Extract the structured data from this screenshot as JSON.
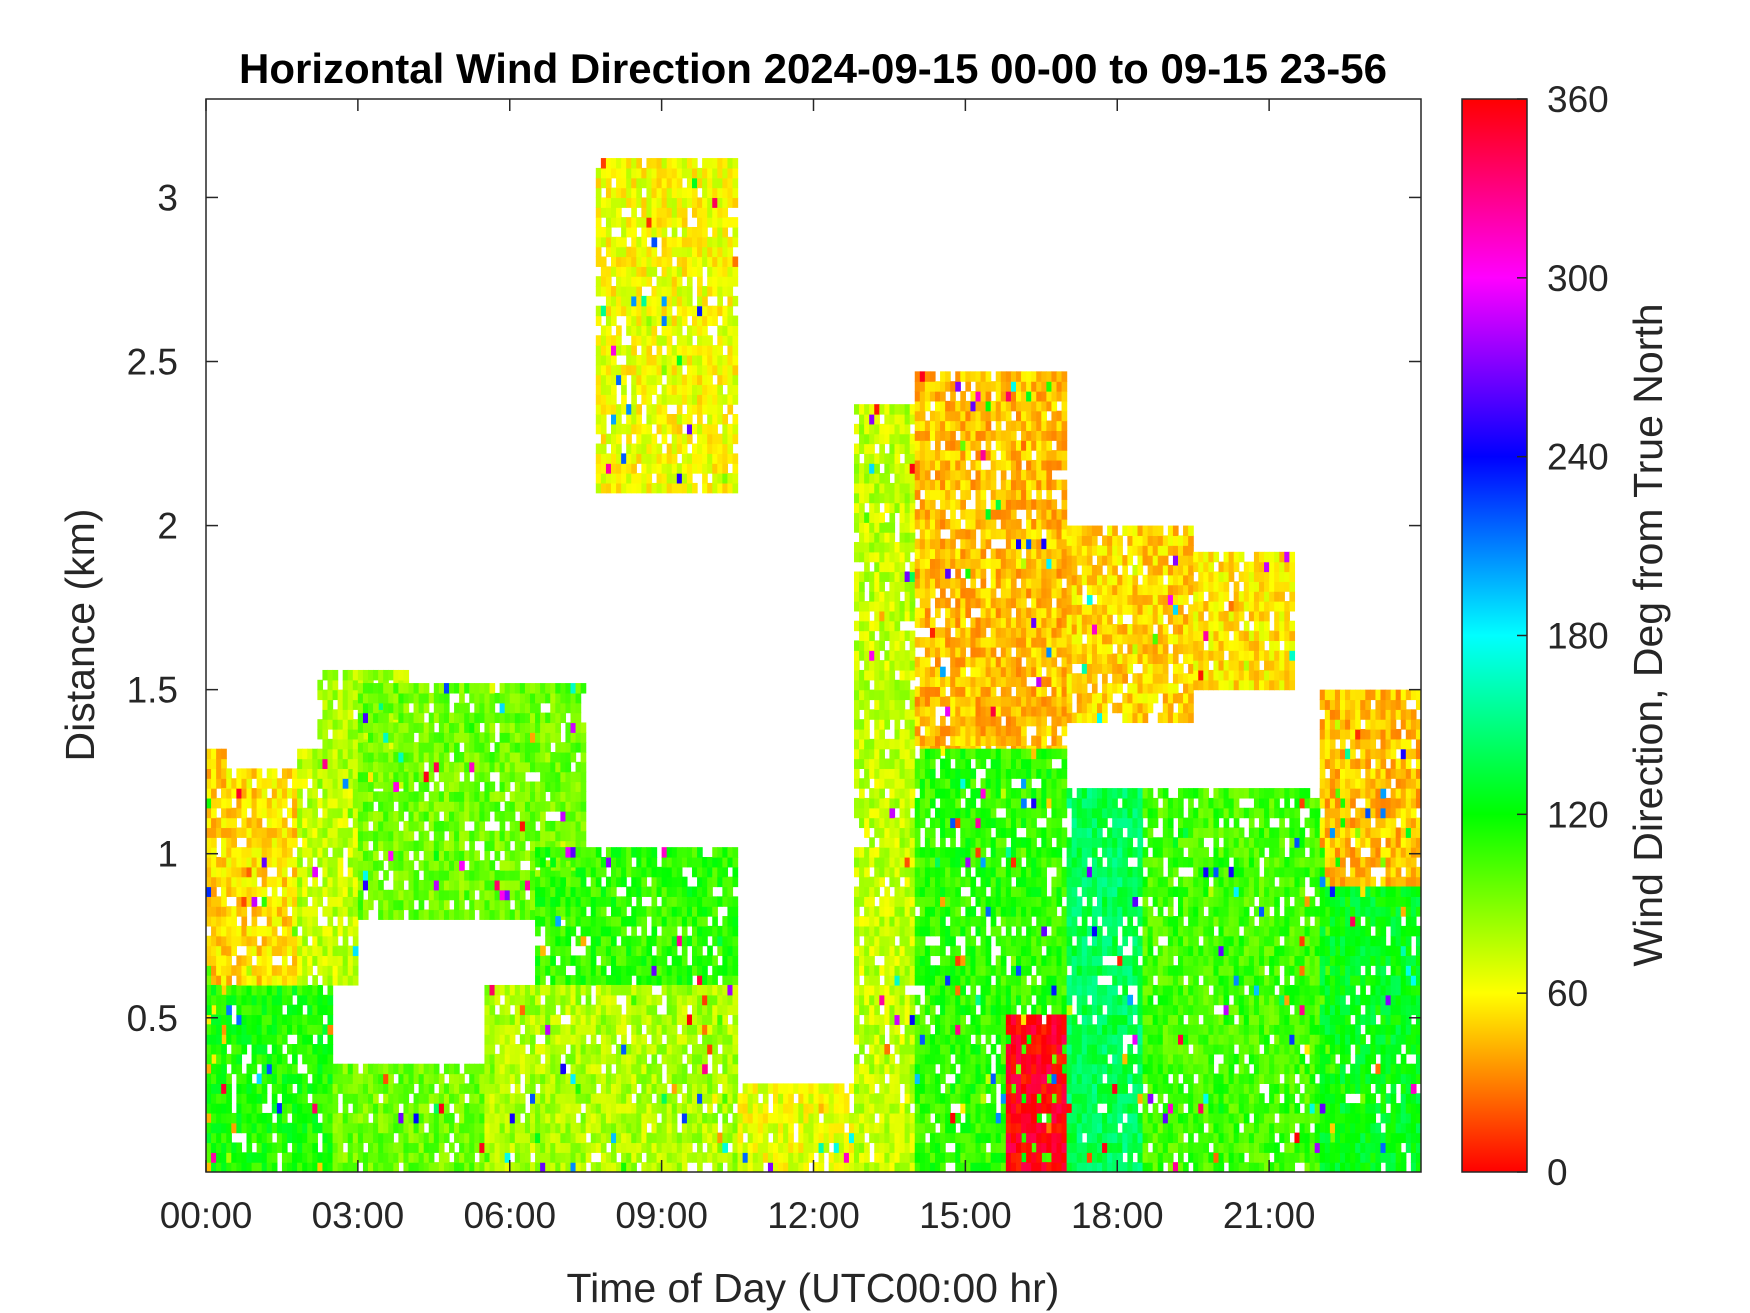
{
  "chart_data": {
    "type": "heatmap",
    "title": "Horizontal Wind Direction 2024-09-15 00-00 to 09-15 23-56",
    "xlabel": "Time of Day (UTC00:00 hr)",
    "ylabel": "Distance (km)",
    "colorbar_label": "Wind Direction, Deg from True North",
    "x_ticks": [
      "00:00",
      "03:00",
      "06:00",
      "09:00",
      "12:00",
      "15:00",
      "18:00",
      "21:00"
    ],
    "x_tick_hours": [
      0,
      3,
      6,
      9,
      12,
      15,
      18,
      21
    ],
    "xlim_hours": [
      0,
      24
    ],
    "y_ticks": [
      "0.5",
      "1",
      "1.5",
      "2",
      "2.5",
      "3"
    ],
    "y_tick_values": [
      0.5,
      1,
      1.5,
      2,
      2.5,
      3
    ],
    "ylim": [
      0.03,
      3.3
    ],
    "colorbar_ticks": [
      "0",
      "60",
      "120",
      "180",
      "240",
      "300",
      "360"
    ],
    "colorbar_values": [
      0,
      60,
      120,
      180,
      240,
      300,
      360
    ],
    "clim": [
      0,
      360
    ],
    "colormap": "hsv",
    "grid": false,
    "regions": [
      {
        "t0": 0.0,
        "t1": 0.4,
        "h0": 0.03,
        "h1": 1.3,
        "dir": 50
      },
      {
        "t0": 0.0,
        "t1": 2.5,
        "h0": 0.03,
        "h1": 0.6,
        "dir": 115
      },
      {
        "t0": 0.3,
        "t1": 1.8,
        "h0": 0.6,
        "h1": 1.25,
        "dir": 52
      },
      {
        "t0": 1.8,
        "t1": 3.0,
        "h0": 0.6,
        "h1": 1.3,
        "dir": 75
      },
      {
        "t0": 2.2,
        "t1": 4.0,
        "h0": 1.2,
        "h1": 1.55,
        "dir": 80
      },
      {
        "t0": 3.0,
        "t1": 7.5,
        "h0": 0.8,
        "h1": 1.5,
        "dir": 95
      },
      {
        "t0": 2.5,
        "t1": 6.0,
        "h0": 0.03,
        "h1": 0.35,
        "dir": 95
      },
      {
        "t0": 6.5,
        "t1": 10.5,
        "h0": 0.6,
        "h1": 1.0,
        "dir": 110
      },
      {
        "t0": 5.5,
        "t1": 10.5,
        "h0": 0.03,
        "h1": 0.6,
        "dir": 80
      },
      {
        "t0": 7.7,
        "t1": 10.5,
        "h0": 2.1,
        "h1": 3.1,
        "dir": 62
      },
      {
        "t0": 10.5,
        "t1": 12.8,
        "h0": 0.03,
        "h1": 0.3,
        "dir": 65
      },
      {
        "t0": 12.8,
        "t1": 14.0,
        "h0": 0.03,
        "h1": 2.35,
        "dir": 75
      },
      {
        "t0": 14.0,
        "t1": 17.0,
        "h0": 1.3,
        "h1": 2.45,
        "dir": 45
      },
      {
        "t0": 14.0,
        "t1": 17.0,
        "h0": 0.03,
        "h1": 1.3,
        "dir": 110
      },
      {
        "t0": 15.8,
        "t1": 17.2,
        "h0": 0.03,
        "h1": 0.5,
        "dir": 355
      },
      {
        "t0": 17.0,
        "t1": 19.5,
        "h0": 1.4,
        "h1": 2.0,
        "dir": 50
      },
      {
        "t0": 19.5,
        "t1": 21.5,
        "h0": 1.5,
        "h1": 1.9,
        "dir": 55
      },
      {
        "t0": 17.0,
        "t1": 18.5,
        "h0": 0.03,
        "h1": 1.2,
        "dir": 140
      },
      {
        "t0": 18.5,
        "t1": 22.5,
        "h0": 0.03,
        "h1": 1.2,
        "dir": 105
      },
      {
        "t0": 22.0,
        "t1": 24.0,
        "h0": 0.9,
        "h1": 1.5,
        "dir": 45
      },
      {
        "t0": 22.0,
        "t1": 24.0,
        "h0": 0.03,
        "h1": 0.9,
        "dir": 125
      }
    ]
  }
}
